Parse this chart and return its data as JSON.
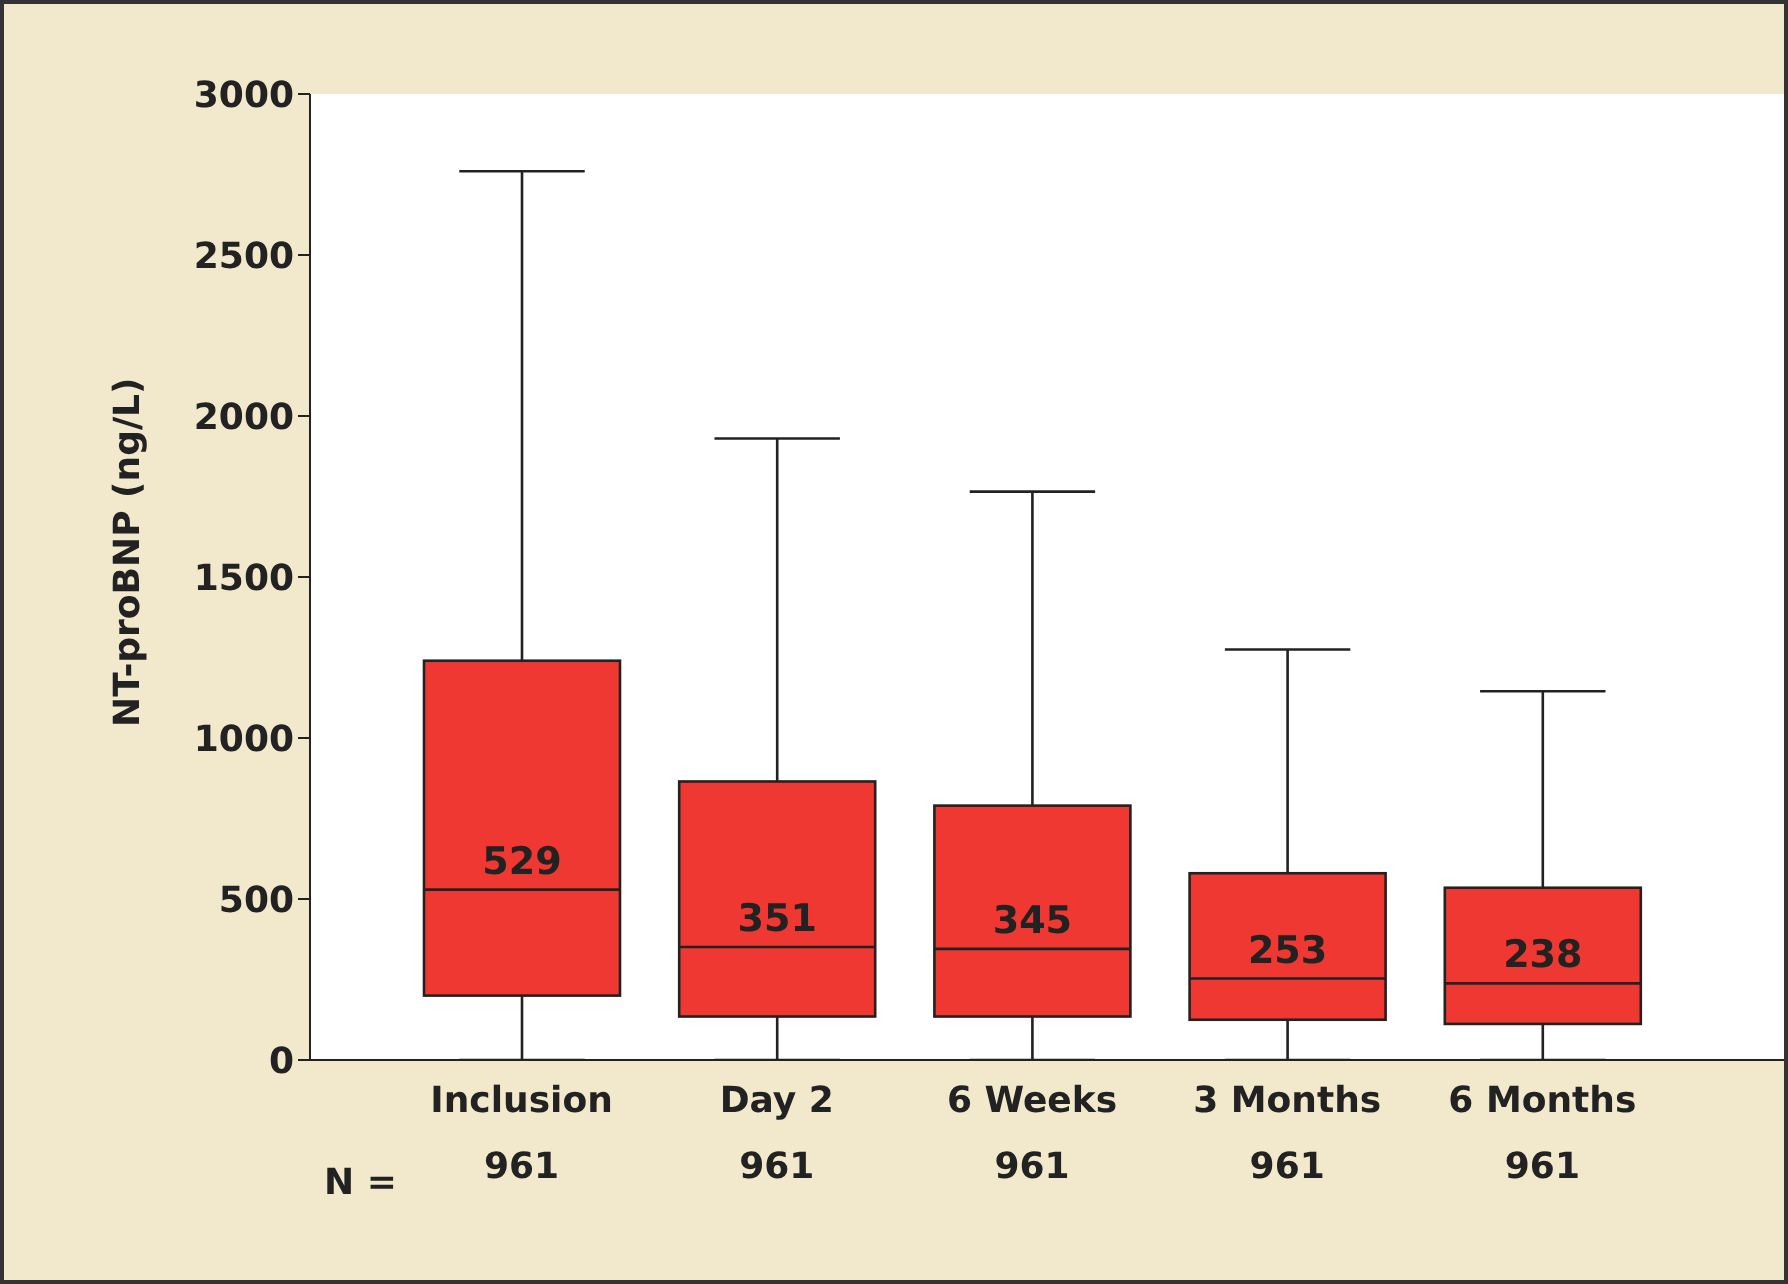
{
  "chart_data": {
    "type": "box",
    "ylabel": "NT-proBNP (ng/L)",
    "categories": [
      "Inclusion",
      "Day 2",
      "6 Weeks",
      "3 Months",
      "6 Months"
    ],
    "boxes": [
      {
        "low": 0,
        "q1": 200,
        "median": 529,
        "q3": 1240,
        "high": 2760
      },
      {
        "low": 0,
        "q1": 135,
        "median": 351,
        "q3": 865,
        "high": 1930
      },
      {
        "low": 0,
        "q1": 135,
        "median": 345,
        "q3": 790,
        "high": 1765
      },
      {
        "low": 0,
        "q1": 125,
        "median": 253,
        "q3": 580,
        "high": 1275
      },
      {
        "low": 0,
        "q1": 112,
        "median": 238,
        "q3": 535,
        "high": 1145
      }
    ],
    "value_labels": [
      "529",
      "351",
      "345",
      "253",
      "238"
    ],
    "color": "#ee3831",
    "ylim": [
      0,
      3000
    ],
    "yticks": [
      0,
      500,
      1000,
      1500,
      2000,
      2500,
      3000
    ],
    "annotations": [
      "N =",
      "961",
      "961",
      "961",
      "961",
      "961"
    ]
  }
}
